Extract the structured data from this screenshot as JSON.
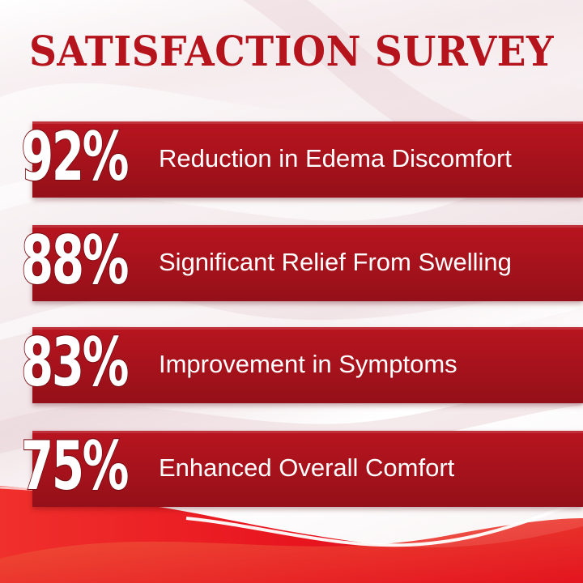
{
  "title": "SATISFACTION SURVEY",
  "colors": {
    "title": "#b5141d",
    "band": "#a5121b",
    "bottom_wave": "#e8151f"
  },
  "stats": [
    {
      "percent": "92%",
      "label": "Reduction in Edema Discomfort",
      "value": 92
    },
    {
      "percent": "88%",
      "label": "Significant Relief From Swelling",
      "value": 88
    },
    {
      "percent": "83%",
      "label": "Improvement in Symptoms",
      "value": 83
    },
    {
      "percent": "75%",
      "label": "Enhanced Overall Comfort",
      "value": 75
    }
  ]
}
